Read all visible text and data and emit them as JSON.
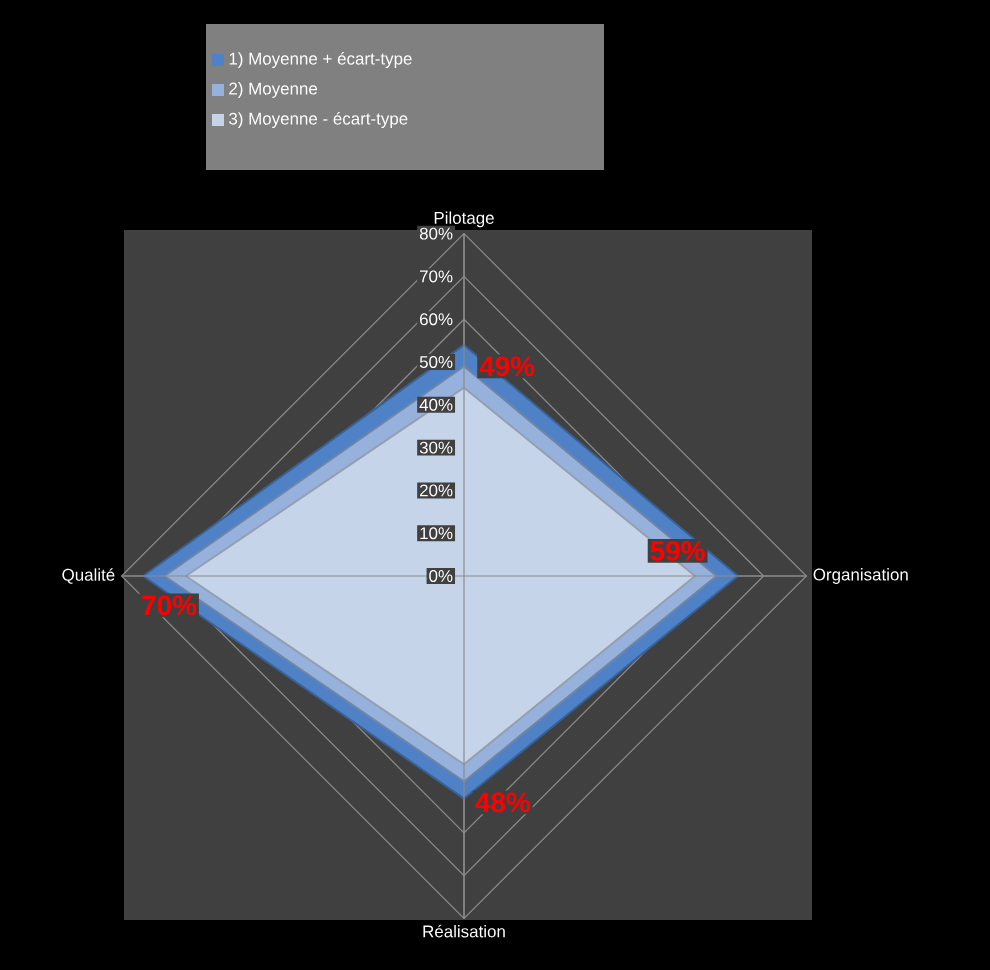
{
  "chart_data": {
    "type": "radar",
    "categories": [
      "Pilotage",
      "Organisation",
      "Réalisation",
      "Qualité"
    ],
    "series": [
      {
        "name": "1) Moyenne + écart-type",
        "color": "#4f81c6",
        "values": [
          54,
          64,
          52,
          75
        ]
      },
      {
        "name": "2) Moyenne",
        "color": "#95b1dc",
        "values": [
          49,
          59,
          48,
          70
        ],
        "value_labels": [
          "49%",
          "59%",
          "48%",
          "70%"
        ]
      },
      {
        "name": "3) Moyenne - écart-type",
        "color": "#c6d4ea",
        "values": [
          44,
          54,
          44,
          65
        ]
      }
    ],
    "ylim": [
      0,
      80
    ],
    "yticks": [
      {
        "value": 0,
        "label": "0%"
      },
      {
        "value": 10,
        "label": "10%"
      },
      {
        "value": 20,
        "label": "20%"
      },
      {
        "value": 30,
        "label": "30%"
      },
      {
        "value": 40,
        "label": "40%"
      },
      {
        "value": 50,
        "label": "50%"
      },
      {
        "value": 60,
        "label": "60%"
      },
      {
        "value": 70,
        "label": "70%"
      },
      {
        "value": 80,
        "label": "80%"
      }
    ],
    "grid": true,
    "legend": "top",
    "marker": "none"
  }
}
